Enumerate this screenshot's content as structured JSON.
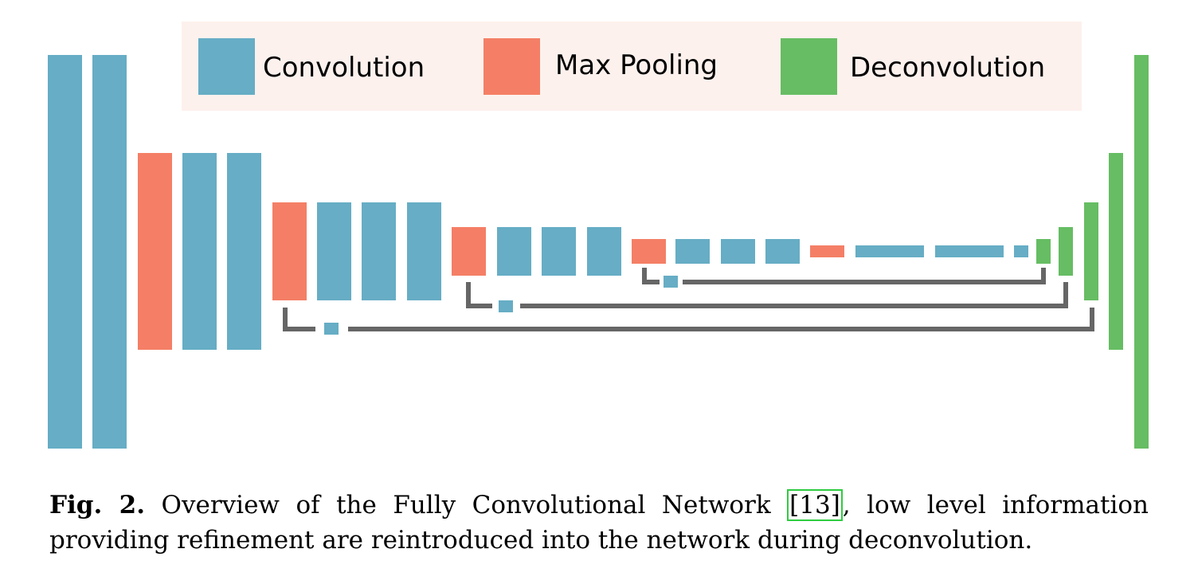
{
  "legend": {
    "items": [
      {
        "label": "Convolution",
        "type": "conv"
      },
      {
        "label": "Max Pooling",
        "type": "pool"
      },
      {
        "label": "Deconvolution",
        "type": "deconv"
      }
    ]
  },
  "colors": {
    "conv": "#66adc5",
    "pool": "#f47f66",
    "deconv": "#66bd63",
    "connector": "#666666",
    "legend_bg": "#fdf1ed"
  },
  "caption": {
    "label": "Fig. 2.",
    "before_ref": "Overview of the Fully Convolutional Network ",
    "ref": "[13]",
    "after_ref": ", low level information providing refinement are reintroduced into the network during deconvolution."
  }
}
